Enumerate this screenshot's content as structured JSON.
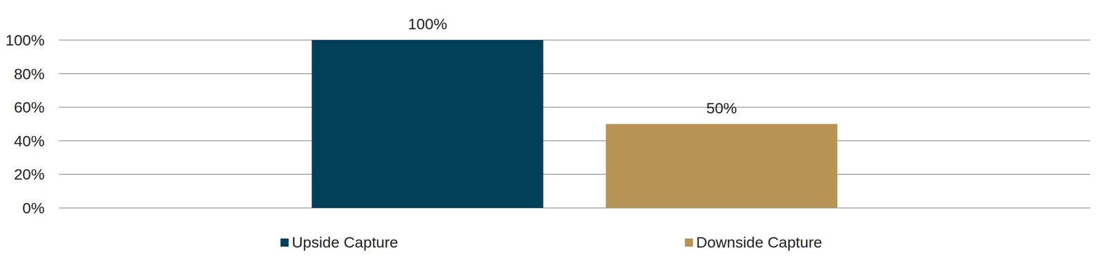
{
  "chart_data": {
    "type": "bar",
    "categories": [
      null
    ],
    "series": [
      {
        "name": "Upside Capture",
        "color": "#023f58",
        "values": [
          100
        ],
        "value_labels": [
          "100%"
        ]
      },
      {
        "name": "Downside Capture",
        "color": "#b79355",
        "values": [
          50
        ],
        "value_labels": [
          "50%"
        ]
      }
    ],
    "ylim": [
      0,
      100
    ],
    "yticks": [
      {
        "value": 0,
        "label": "0%"
      },
      {
        "value": 20,
        "label": "20%"
      },
      {
        "value": 40,
        "label": "40%"
      },
      {
        "value": 60,
        "label": "60%"
      },
      {
        "value": 80,
        "label": "80%"
      },
      {
        "value": 100,
        "label": "100%"
      }
    ],
    "grid": true,
    "data_labels": true,
    "legend": "bottom",
    "tick_labels": "y"
  }
}
